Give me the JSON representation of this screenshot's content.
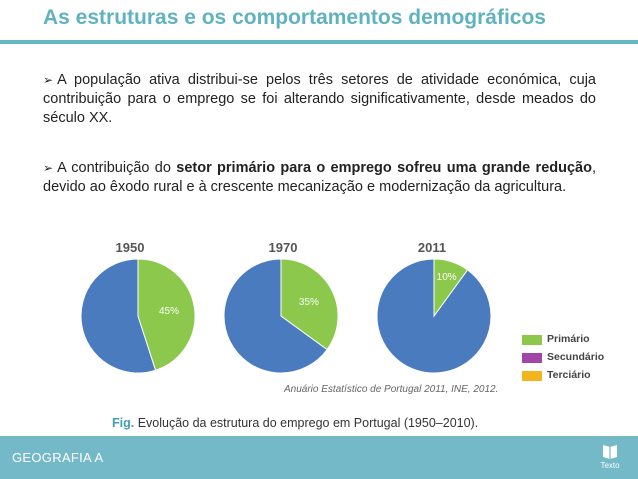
{
  "header": {
    "title": "As estruturas e os comportamentos demográficos"
  },
  "bullets": [
    {
      "text": "A população ativa distribui-se pelos três setores de atividade económica, cuja contribuição para o emprego se foi alterando significativamente, desde meados do século XX."
    },
    {
      "pre": "A contribuição do ",
      "bold": "setor primário para o emprego sofreu uma grande redução",
      "post": ", devido ao êxodo rural e à crescente mecanização e modernização da agricultura."
    }
  ],
  "figure": {
    "source": "Anuário Estatístico de Portugal 2011, INE, 2012.",
    "caption_prefix": "Fig.",
    "caption": " Evolução da estrutura do emprego em Portugal (1950–2010)."
  },
  "chart_data": {
    "type": "pie",
    "charts": [
      {
        "year": "1950",
        "primary_pct": 45,
        "label": "45%"
      },
      {
        "year": "1970",
        "primary_pct": 35,
        "label": "35%"
      },
      {
        "year": "2011",
        "primary_pct": 10,
        "label": "10%"
      }
    ],
    "legend": [
      {
        "label": "Primário",
        "color": "#8cc84b"
      },
      {
        "label": "Secundário",
        "color": "#a046a8"
      },
      {
        "label": "Terciário",
        "color": "#f2b51c"
      }
    ],
    "other_color": "#4a7bbf"
  },
  "footer": {
    "label": "GEOGRAFIA A",
    "logo_text": "Texto"
  }
}
